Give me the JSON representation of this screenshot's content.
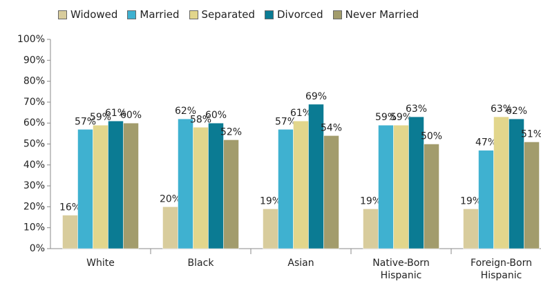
{
  "chart_data": {
    "type": "bar",
    "categories": [
      "White",
      "Black",
      "Asian",
      "Native-Born Hispanic",
      "Foreign-Born Hispanic"
    ],
    "series": [
      {
        "name": "Widowed",
        "color": "#d8cc9c",
        "values": [
          16,
          20,
          19,
          19,
          19
        ],
        "value_labels": [
          "16%",
          "20%",
          "19%",
          "19%",
          "19%"
        ]
      },
      {
        "name": "Married",
        "color": "#3fb1d0",
        "values": [
          57,
          62,
          57,
          59,
          47
        ],
        "value_labels": [
          "57%",
          "62%",
          "57%",
          "59%",
          "47%"
        ]
      },
      {
        "name": "Separated",
        "color": "#e2d68c",
        "values": [
          59,
          58,
          61,
          59,
          63
        ],
        "value_labels": [
          "59%",
          "58%",
          "61%",
          "59%",
          "63%"
        ]
      },
      {
        "name": "Divorced",
        "color": "#0b7b93",
        "values": [
          61,
          60,
          69,
          63,
          62
        ],
        "value_labels": [
          "61%",
          "60%",
          "69%",
          "63%",
          "62%"
        ]
      },
      {
        "name": "Never Married",
        "color": "#a29c6c",
        "values": [
          60,
          52,
          54,
          50,
          51
        ],
        "value_labels": [
          "60%",
          "52%",
          "54%",
          "50%",
          "51%"
        ]
      }
    ],
    "ylim": [
      0,
      100
    ],
    "yticks": [
      {
        "value": 0,
        "label": "0%"
      },
      {
        "value": 10,
        "label": "10%"
      },
      {
        "value": 20,
        "label": "20%"
      },
      {
        "value": 30,
        "label": "30%"
      },
      {
        "value": 40,
        "label": "40%"
      },
      {
        "value": 50,
        "label": "50%"
      },
      {
        "value": 60,
        "label": "60%"
      },
      {
        "value": 70,
        "label": "70%"
      },
      {
        "value": 80,
        "label": "80%"
      },
      {
        "value": 90,
        "label": "90%"
      },
      {
        "value": 100,
        "label": "100%"
      }
    ],
    "grid": false,
    "legend": "top"
  }
}
